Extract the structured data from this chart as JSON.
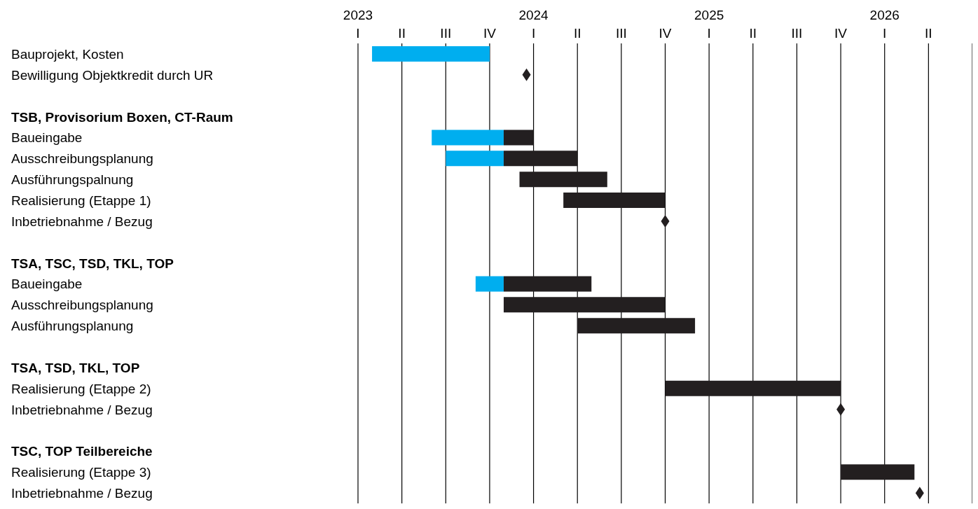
{
  "chart_data": {
    "type": "bar",
    "orientation": "horizontal",
    "grid": "x",
    "categories": [
      "Bauprojekt, Kosten",
      "Bewilligung Objektkredit durch UR",
      null,
      "TSB, Provisorium Boxen, CT-Raum",
      "Baueingabe",
      "Ausschreibungsplanung",
      "Ausführungspalnung",
      "Realisierung (Etappe 1)",
      "Inbetriebnahme / Bezug",
      null,
      "TSA, TSC, TSD, TKL, TOP",
      "Baueingabe",
      "Ausschreibungsplanung",
      "Ausführungsplanung",
      null,
      "TSA, TSD, TKL, TOP",
      "Realisierung (Etappe 2)",
      "Inbetriebnahme / Bezug",
      null,
      "TSC, TOP Teilbereiche",
      "Realisierung (Etappe 3)",
      "Inbetriebnahme / Bezug"
    ],
    "series": [
      {
        "color": "#00aeef",
        "base": [
          2023.08,
          null,
          null,
          null,
          2023.42,
          2023.5,
          null,
          null,
          null,
          null,
          null,
          2023.67,
          null,
          null,
          null,
          null,
          null,
          null,
          null,
          null,
          null,
          null
        ],
        "values": [
          0.67,
          null,
          null,
          null,
          0.41,
          0.33,
          null,
          null,
          null,
          null,
          null,
          0.16,
          null,
          null,
          null,
          null,
          null,
          null,
          null,
          null,
          null,
          null
        ]
      },
      {
        "color": "#231f20",
        "base": [
          null,
          null,
          null,
          null,
          2023.83,
          2023.83,
          2023.92,
          2024.17,
          null,
          null,
          null,
          2023.83,
          2023.83,
          2024.25,
          null,
          null,
          2024.75,
          null,
          null,
          null,
          2025.75,
          null
        ],
        "values": [
          null,
          null,
          null,
          null,
          0.17,
          0.42,
          0.5,
          0.58,
          null,
          null,
          null,
          0.5,
          0.92,
          0.67,
          null,
          null,
          1.0,
          null,
          null,
          null,
          0.42,
          null
        ]
      },
      {
        "type": "scatter",
        "marker": "diamond",
        "color": "#231f20",
        "values": [
          null,
          2023.96,
          null,
          null,
          null,
          null,
          null,
          null,
          2024.75,
          null,
          null,
          null,
          null,
          null,
          null,
          null,
          null,
          2025.75,
          null,
          null,
          null,
          2026.2
        ]
      }
    ],
    "xlim": [
      2023,
      2026.5
    ],
    "xticks": [
      2023,
      {
        "value": 2023.25,
        "label": null
      },
      {
        "value": 2023.5,
        "label": null
      },
      {
        "value": 2023.75,
        "label": null
      },
      2024,
      {
        "value": 2024.25,
        "label": null
      },
      {
        "value": 2024.5,
        "label": null
      },
      {
        "value": 2024.75,
        "label": null
      },
      2025,
      {
        "value": 2025.25,
        "label": null
      },
      {
        "value": 2025.5,
        "label": null
      },
      {
        "value": 2025.75,
        "label": null
      },
      2026,
      {
        "value": 2026.25,
        "label": null
      }
    ],
    "annotations": [
      "I",
      "II",
      "III",
      "IV",
      "I",
      "II",
      "III",
      "IV",
      "I",
      "II",
      "III",
      "IV",
      "I",
      "II"
    ]
  }
}
